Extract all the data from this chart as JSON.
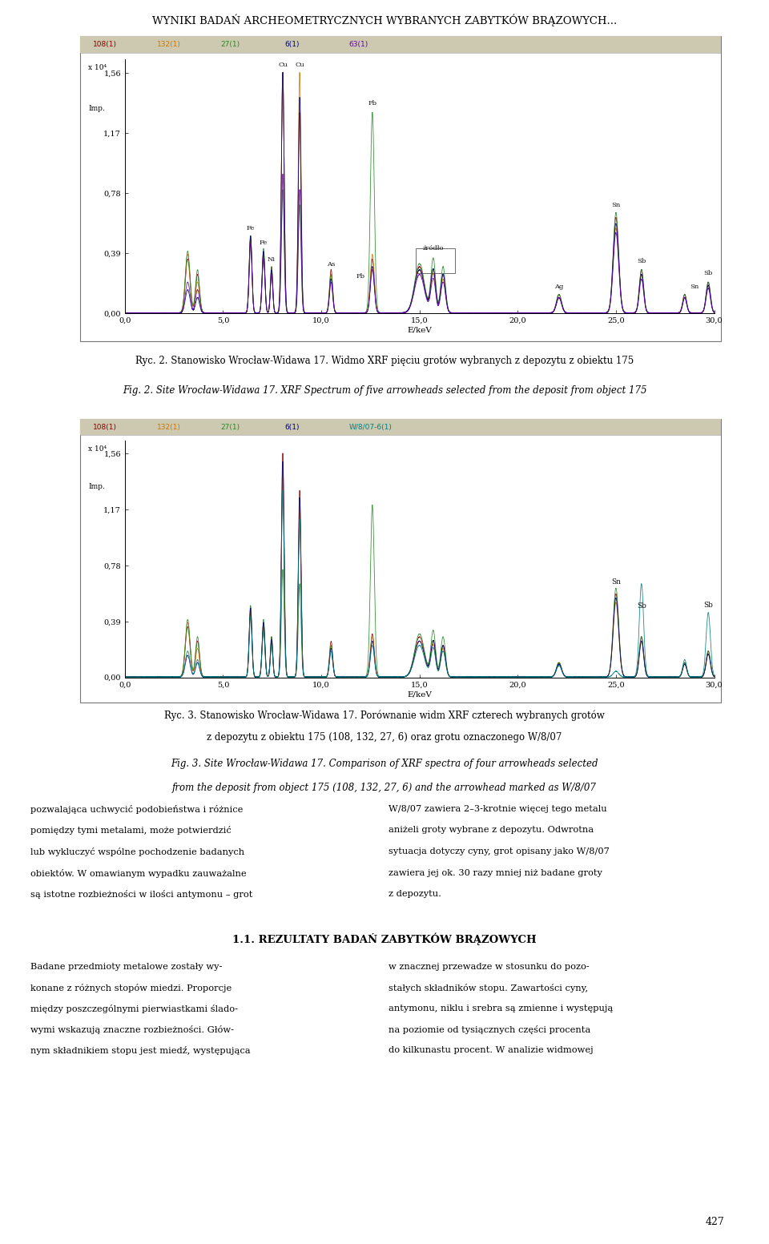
{
  "page_title": "WYNIKI BADAŃ ARCHEOMETRYCZNYCH WYBRANYCH ZABYTKÓW BRĄZOWYCH...",
  "page_bg": "#ffffff",
  "chart_header_bg": "#cdc9b0",
  "chart1_legend_labels": [
    "108(1)",
    "132(1)",
    "27(1)",
    "6(1)",
    "63(1)"
  ],
  "chart1_legend_colors": [
    "#8b0000",
    "#cc7700",
    "#228b22",
    "#000080",
    "#6600aa"
  ],
  "chart2_legend_labels": [
    "108(1)",
    "132(1)",
    "27(1)",
    "6(1)",
    "W/8/07-6(1)"
  ],
  "chart2_legend_colors": [
    "#8b0000",
    "#cc7700",
    "#228b22",
    "#000080",
    "#008080"
  ],
  "xlabel": "E/keV",
  "ytick_labels": [
    "0,00",
    "0,39",
    "0,78",
    "1,17",
    "1,56"
  ],
  "ytick_vals": [
    0.0,
    0.39,
    0.78,
    1.17,
    1.56
  ],
  "xtick_labels": [
    "0,0",
    "5,0",
    "10,0",
    "15,0",
    "20,0",
    "25,0",
    "30,0"
  ],
  "xtick_vals": [
    0.0,
    5.0,
    10.0,
    15.0,
    20.0,
    25.0,
    30.0
  ],
  "caption1_pl": "Ryc. 2. Stanowisko Wrocław-Widawa 17. Widmo XRF pięciu grotów wybranych z depozytu z obiektu 175",
  "caption1_en": "Fig. 2. Site Wrocław-Widawa 17. XRF Spectrum of five arrowheads selected from the deposit from object 175",
  "caption2_pl": "Ryc. 3. Stanowisko Wrocław-Widawa 17. Porównanie widm XRF czterech wybranych grotów",
  "caption2_pl2": "z depozytu z obiektu 175 (108, 132, 27, 6) oraz grotu oznaczonego W/8/07",
  "caption2_en": "Fig. 3. Site Wrocław-Widawa 17. Comparison of XRF spectra of four arrowheads selected",
  "caption2_en2": "from the deposit from object 175 (108, 132, 27, 6) and the arrowhead marked as W/8/07",
  "body_left_1": "pozwalająca uchwycić podobieństwa i różnice",
  "body_left_2": "pomiędzy tymi metalami, może potwierdzić",
  "body_left_3": "lub wykluczyć wspólne pochodzenie badanych",
  "body_left_4": "obiektów. W omawianym wypadku zauważalne",
  "body_left_5": "są istotne rozbieżności w ilości antymonu – grot",
  "body_right_1": "W/8/07 zawiera 2–3-krotnie więcej tego metalu",
  "body_right_2": "aniżeli groty wybrane z depozytu. Odwrotna",
  "body_right_3": "sytuacja dotyczy cyny, grot opisany jako W/8/07",
  "body_right_4": "zawiera jej ok. 30 razy mniej niż badane groty",
  "body_right_5": "z depozytu.",
  "section_title": "1.1. REZULTATY BADAŃ ZABYTKÓW BRĄZOWYCH",
  "body2_left_1": "Badane przedmioty metalowe zostały wy-",
  "body2_left_2": "konane z różnych stopów miedzi. Proporcje",
  "body2_left_3": "między poszczególnymi pierwiastkami ślado-",
  "body2_left_4": "wymi wskazują znaczne rozbieżności. Głów-",
  "body2_left_5": "nym składnikiem stopu jest miedź, występująca",
  "body2_right_1": "w znacznej przewadze w stosunku do pozo-",
  "body2_right_2": "stałych składników stopu. Zawartości cyny,",
  "body2_right_3": "antymonu, niklu i srebra są zmienne i występują",
  "body2_right_4": "na poziomie od tysiącznych części procenta",
  "body2_right_5": "do kilkunastu procent. W analizie widmowej",
  "page_number": "427"
}
